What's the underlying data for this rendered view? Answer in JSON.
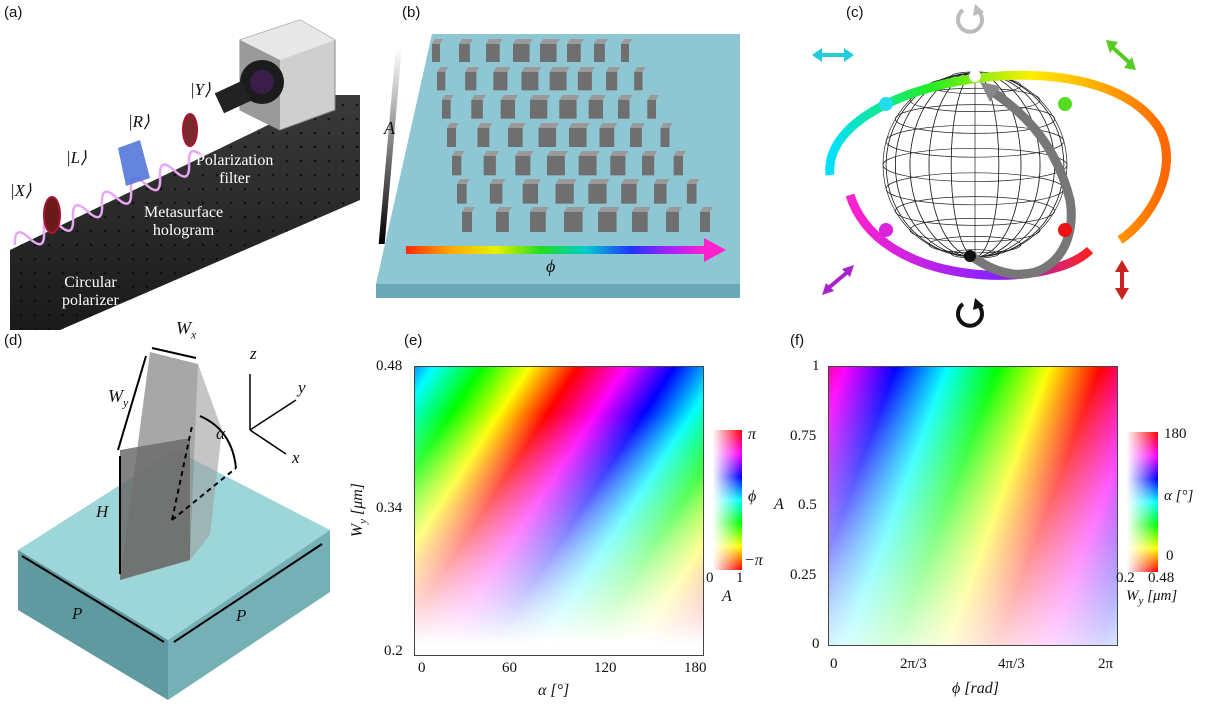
{
  "panels": {
    "a": {
      "label": "(a)",
      "ket_x": "|X⟩",
      "ket_l": "|L⟩",
      "ket_r": "|R⟩",
      "ket_y": "|Y⟩",
      "polarizer_1": "Circular",
      "polarizer_2": "polarizer",
      "hologram_1": "Metasurface",
      "hologram_2": "hologram",
      "filter_1": "Polarization",
      "filter_2": "filter"
    },
    "b": {
      "label": "(b)",
      "a_axis": "A",
      "phi_axis": "ϕ"
    },
    "c": {
      "label": "(c)"
    },
    "d": {
      "label": "(d)",
      "wx": "W",
      "wx_sub": "x",
      "wy": "W",
      "wy_sub": "y",
      "alpha": "α",
      "h": "H",
      "p_left": "P",
      "p_right": "P",
      "ax_z": "z",
      "ax_y": "y",
      "ax_x": "x"
    },
    "e": {
      "label": "(e)",
      "ylabel": "W",
      "ylabel_sub": "y",
      "ylabel_unit": "[μm]",
      "xlabel": "α [°]",
      "yticks": [
        "0.48",
        "0.34",
        "0.2"
      ],
      "xticks": [
        "0",
        "60",
        "120",
        "180"
      ],
      "cbar_top": "π",
      "cbar_mid": "ϕ",
      "cbar_bot": "−π",
      "cbar_x0": "0",
      "cbar_x1": "1",
      "cbar_xlabel": "A"
    },
    "f": {
      "label": "(f)",
      "ylabel": "A",
      "xlabel": "ϕ [rad]",
      "yticks": [
        "1",
        "0.75",
        "0.5",
        "0.25",
        "0"
      ],
      "xticks": [
        "0",
        "2π/3",
        "4π/3",
        "2π"
      ],
      "cbar_top": "180",
      "cbar_mid": "α [°]",
      "cbar_bot": "0",
      "cbar_x0": "0.2",
      "cbar_x1": "0.48",
      "cbar_xlabel": "W",
      "cbar_xlabel_sub": "y",
      "cbar_xlabel_unit": "[μm]"
    }
  },
  "chart_data": [
    {
      "type": "heatmap",
      "panel": "e",
      "xlabel": "α [°]",
      "ylabel": "W_y [μm]",
      "xlim": [
        0,
        180
      ],
      "ylim": [
        0.2,
        0.48
      ],
      "xticks": [
        0,
        60,
        120,
        180
      ],
      "yticks": [
        0.2,
        0.34,
        0.48
      ],
      "colorbar": {
        "hue": "ϕ",
        "hue_range": [
          "−π",
          "π"
        ],
        "saturation": "A",
        "saturation_range": [
          0,
          1
        ]
      }
    },
    {
      "type": "heatmap",
      "panel": "f",
      "xlabel": "ϕ [rad]",
      "ylabel": "A",
      "xlim": [
        "0",
        "2π"
      ],
      "ylim": [
        0,
        1
      ],
      "xticks": [
        "0",
        "2π/3",
        "4π/3",
        "2π"
      ],
      "yticks": [
        0,
        0.25,
        0.5,
        0.75,
        1
      ],
      "colorbar": {
        "hue": "α [°]",
        "hue_range": [
          0,
          180
        ],
        "saturation": "W_y [μm]",
        "saturation_range": [
          0.2,
          0.48
        ]
      }
    }
  ]
}
